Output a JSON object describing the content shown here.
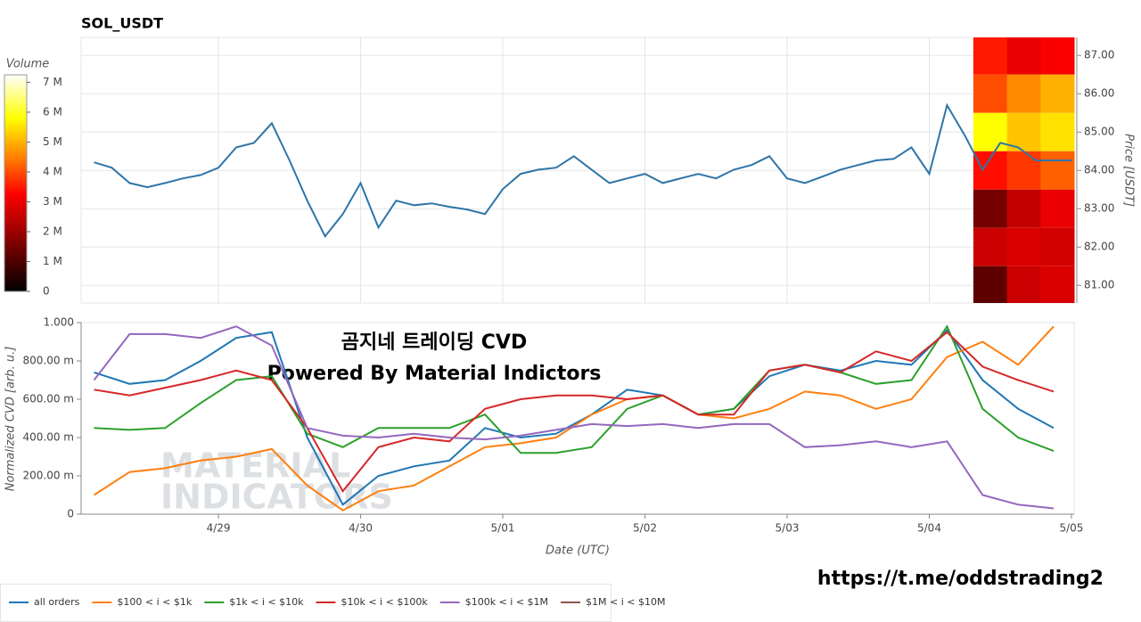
{
  "chart_data": [
    {
      "type": "line",
      "title": "SOL_USDT",
      "y_label": "Price [USDT]",
      "x": [
        -0.875,
        -0.75,
        -0.625,
        -0.5,
        -0.375,
        -0.25,
        -0.125,
        0,
        0.125,
        0.25,
        0.375,
        0.5,
        0.625,
        0.75,
        0.875,
        1,
        1.125,
        1.25,
        1.375,
        1.5,
        1.625,
        1.75,
        1.875,
        2,
        2.125,
        2.25,
        2.375,
        2.5,
        2.625,
        2.75,
        2.875,
        3,
        3.125,
        3.25,
        3.375,
        3.5,
        3.625,
        3.75,
        3.875,
        4,
        4.125,
        4.25,
        4.375,
        4.5,
        4.625,
        4.75,
        4.875,
        5,
        5.125,
        5.25,
        5.375,
        5.5,
        5.625,
        5.75,
        5.875,
        6
      ],
      "series": [
        {
          "name": "SOL_USDT",
          "color": "#2e75a8",
          "values": [
            84.21,
            84.07,
            83.67,
            83.56,
            83.67,
            83.79,
            83.88,
            84.07,
            84.6,
            84.72,
            85.23,
            84.26,
            83.21,
            82.28,
            82.86,
            83.67,
            82.51,
            83.21,
            83.09,
            83.14,
            83.05,
            82.98,
            82.86,
            83.51,
            83.91,
            84.02,
            84.07,
            84.37,
            84.02,
            83.67,
            83.79,
            83.91,
            83.67,
            83.79,
            83.91,
            83.79,
            84.02,
            84.14,
            84.37,
            83.79,
            83.67,
            83.84,
            84.02,
            84.14,
            84.26,
            84.3,
            84.6,
            83.91,
            85.7,
            84.91,
            84.02,
            84.72,
            84.6,
            84.26,
            84.26,
            84.26
          ]
        }
      ],
      "xlim": [
        -0.966,
        6.019
      ],
      "ylim": [
        80.54,
        87.47
      ],
      "yticks": [
        {
          "value": 81,
          "label": "81.00"
        },
        {
          "value": 82,
          "label": "82.00"
        },
        {
          "value": 83,
          "label": "83.00"
        },
        {
          "value": 84,
          "label": "84.00"
        },
        {
          "value": 85,
          "label": "85.00"
        },
        {
          "value": 86,
          "label": "86.00"
        },
        {
          "value": 87,
          "label": "87.00"
        }
      ],
      "grid": true,
      "heatmap": {
        "title": "Volume",
        "xlim": [
          5.31,
          6.019
        ],
        "price_levels": [
          87,
          86,
          85,
          84,
          83,
          82,
          81
        ],
        "volume": [
          [
            3500000,
            3000000,
            3200000
          ],
          [
            4000000,
            4600000,
            5000000
          ],
          [
            5800000,
            5200000,
            5500000
          ],
          [
            3400000,
            3800000,
            4200000
          ],
          [
            1500000,
            2500000,
            3000000
          ],
          [
            2600000,
            2800000,
            2700000
          ],
          [
            1200000,
            2600000,
            2800000
          ]
        ],
        "clim": [
          0,
          7250000
        ],
        "cticks": [
          0,
          {
            "value": 1000000,
            "label": "1 M"
          },
          {
            "value": 2000000,
            "label": "2 M"
          },
          {
            "value": 3000000,
            "label": "3 M"
          },
          {
            "value": 4000000,
            "label": "4 M"
          },
          {
            "value": 5000000,
            "label": "5 M"
          },
          {
            "value": 6000000,
            "label": "6 M"
          },
          {
            "value": 7000000,
            "label": "7 M"
          }
        ]
      }
    },
    {
      "type": "line",
      "x_label": "Date (UTC)",
      "y_label": "Normalized CVD [arb. u.]",
      "x": [
        -0.875,
        -0.625,
        -0.375,
        -0.125,
        0.125,
        0.375,
        0.625,
        0.875,
        1.125,
        1.375,
        1.625,
        1.875,
        2.125,
        2.375,
        2.625,
        2.875,
        3.125,
        3.375,
        3.625,
        3.875,
        4.125,
        4.375,
        4.625,
        4.875,
        5.125,
        5.375,
        5.625,
        5.875
      ],
      "series": [
        {
          "name": "all orders",
          "color": "#1f77b4",
          "values": [
            0.74,
            0.68,
            0.7,
            0.8,
            0.92,
            0.95,
            0.4,
            0.05,
            0.2,
            0.25,
            0.28,
            0.45,
            0.4,
            0.42,
            0.52,
            0.65,
            0.62,
            0.52,
            0.55,
            0.72,
            0.78,
            0.75,
            0.8,
            0.78,
            0.96,
            0.7,
            0.55,
            0.45
          ]
        },
        {
          "name": "$100 < i < $1k",
          "color": "#ff7f0e",
          "values": [
            0.1,
            0.22,
            0.24,
            0.28,
            0.3,
            0.34,
            0.15,
            0.02,
            0.12,
            0.15,
            0.25,
            0.35,
            0.37,
            0.4,
            0.52,
            0.6,
            0.62,
            0.52,
            0.5,
            0.55,
            0.64,
            0.62,
            0.55,
            0.6,
            0.82,
            0.9,
            0.78,
            0.98
          ]
        },
        {
          "name": "$1k < i < $10k",
          "color": "#2ca02c",
          "values": [
            0.45,
            0.44,
            0.45,
            0.58,
            0.7,
            0.72,
            0.42,
            0.35,
            0.45,
            0.45,
            0.45,
            0.52,
            0.32,
            0.32,
            0.35,
            0.55,
            0.62,
            0.52,
            0.55,
            0.75,
            0.78,
            0.74,
            0.68,
            0.7,
            0.98,
            0.55,
            0.4,
            0.33
          ]
        },
        {
          "name": "$10k < i < $100k",
          "color": "#d62728",
          "values": [
            0.65,
            0.62,
            0.66,
            0.7,
            0.75,
            0.7,
            0.45,
            0.12,
            0.35,
            0.4,
            0.38,
            0.55,
            0.6,
            0.62,
            0.62,
            0.6,
            0.62,
            0.52,
            0.52,
            0.75,
            0.78,
            0.74,
            0.85,
            0.8,
            0.95,
            0.77,
            0.7,
            0.64
          ]
        },
        {
          "name": "$100k < i < $1M",
          "color": "#9467bd",
          "values": [
            0.7,
            0.94,
            0.94,
            0.92,
            0.98,
            0.88,
            0.45,
            0.41,
            0.4,
            0.42,
            0.4,
            0.39,
            0.41,
            0.44,
            0.47,
            0.46,
            0.47,
            0.45,
            0.47,
            0.47,
            0.35,
            0.36,
            0.38,
            0.35,
            0.38,
            0.1,
            0.05,
            0.03
          ]
        },
        {
          "name": "$1M < i < $10M",
          "color": "#8c564b",
          "values": [
            null,
            null,
            null,
            null,
            null,
            null,
            null,
            null,
            null,
            null,
            null,
            null,
            null,
            null,
            null,
            null,
            null,
            null,
            null,
            null,
            null,
            null,
            null,
            null,
            null,
            null,
            null,
            null
          ]
        }
      ],
      "xlim": [
        -0.966,
        6.019
      ],
      "ylim": [
        0,
        1
      ],
      "xticks": [
        {
          "value": 0,
          "label": "4/29"
        },
        {
          "value": 1,
          "label": "4/30"
        },
        {
          "value": 2,
          "label": "5/01"
        },
        {
          "value": 3,
          "label": "5/02"
        },
        {
          "value": 4,
          "label": "5/03"
        },
        {
          "value": 5,
          "label": "5/04"
        },
        {
          "value": 6,
          "label": "5/05"
        }
      ],
      "yticks": [
        0,
        {
          "value": 0.2,
          "label": "200.00 m"
        },
        {
          "value": 0.4,
          "label": "400.00 m"
        },
        {
          "value": 0.6,
          "label": "600.00 m"
        },
        {
          "value": 0.8,
          "label": "800.00 m"
        },
        {
          "value": 1,
          "label": "1.000"
        }
      ]
    }
  ],
  "overlay": [
    "곰지네 트레이딩 CVD",
    "Powered By Material Indictors"
  ],
  "watermark": [
    "MATERIAL",
    "INDICATORS"
  ],
  "footer_link": "https://t.me/oddstrading2"
}
